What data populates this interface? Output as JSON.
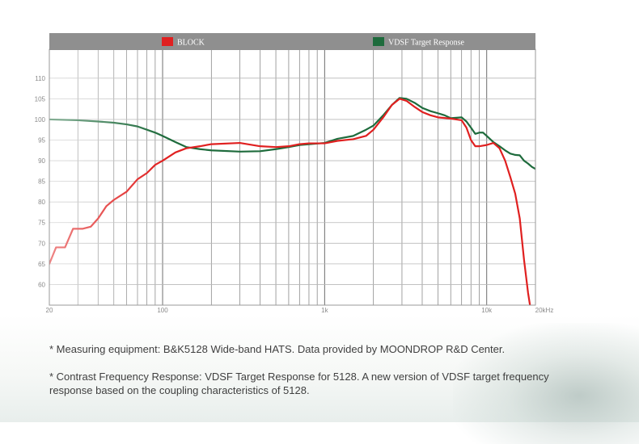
{
  "chart_data": {
    "type": "line",
    "x_scale": "log",
    "xlim": [
      20,
      20000
    ],
    "ylim": [
      55,
      117
    ],
    "y_ticks": [
      60,
      65,
      70,
      75,
      80,
      85,
      90,
      95,
      100,
      105,
      110
    ],
    "y_tick_labels": [
      "60",
      "65",
      "70",
      "75",
      "80",
      "85",
      "90",
      "95",
      "100",
      "105",
      "110"
    ],
    "x_ticks": [
      20,
      100,
      1000,
      10000,
      20000
    ],
    "x_tick_labels": [
      "20",
      "100",
      "1k",
      "10k",
      "20kHz"
    ],
    "grid": true,
    "legend_position": "top",
    "series": [
      {
        "name": "BLOCK",
        "color": "#e02020",
        "points": [
          [
            20,
            65
          ],
          [
            22,
            69
          ],
          [
            25,
            69
          ],
          [
            28,
            73.5
          ],
          [
            32,
            73.5
          ],
          [
            36,
            74
          ],
          [
            40,
            76
          ],
          [
            45,
            79
          ],
          [
            50,
            80.5
          ],
          [
            60,
            82.5
          ],
          [
            70,
            85.5
          ],
          [
            80,
            87
          ],
          [
            90,
            89
          ],
          [
            100,
            90
          ],
          [
            120,
            92
          ],
          [
            140,
            93
          ],
          [
            170,
            93.5
          ],
          [
            200,
            94
          ],
          [
            300,
            94.3
          ],
          [
            400,
            93.5
          ],
          [
            500,
            93.3
          ],
          [
            600,
            93.5
          ],
          [
            700,
            94
          ],
          [
            800,
            94.2
          ],
          [
            1000,
            94.2
          ],
          [
            1200,
            94.8
          ],
          [
            1500,
            95.2
          ],
          [
            1800,
            96
          ],
          [
            2000,
            97.5
          ],
          [
            2300,
            100.5
          ],
          [
            2600,
            103.5
          ],
          [
            2900,
            105
          ],
          [
            3200,
            104.5
          ],
          [
            3600,
            103
          ],
          [
            4000,
            101.8
          ],
          [
            4500,
            101
          ],
          [
            5000,
            100.5
          ],
          [
            6000,
            100.2
          ],
          [
            7000,
            99.8
          ],
          [
            7500,
            98
          ],
          [
            8000,
            95
          ],
          [
            8500,
            93.5
          ],
          [
            9000,
            93.5
          ],
          [
            10000,
            93.8
          ],
          [
            11000,
            94.3
          ],
          [
            12000,
            93
          ],
          [
            13000,
            90
          ],
          [
            14000,
            86
          ],
          [
            15000,
            82
          ],
          [
            16000,
            76
          ],
          [
            17000,
            66
          ],
          [
            18000,
            58
          ],
          [
            18500,
            55
          ]
        ]
      },
      {
        "name": "VDSF Target Response",
        "color": "#1e6b3c",
        "points": [
          [
            20,
            100
          ],
          [
            30,
            99.8
          ],
          [
            40,
            99.5
          ],
          [
            50,
            99.2
          ],
          [
            60,
            98.8
          ],
          [
            70,
            98.3
          ],
          [
            80,
            97.5
          ],
          [
            90,
            96.8
          ],
          [
            100,
            96
          ],
          [
            120,
            94.5
          ],
          [
            140,
            93.3
          ],
          [
            170,
            92.8
          ],
          [
            200,
            92.5
          ],
          [
            300,
            92.2
          ],
          [
            400,
            92.3
          ],
          [
            500,
            92.8
          ],
          [
            600,
            93.3
          ],
          [
            700,
            93.8
          ],
          [
            800,
            94
          ],
          [
            1000,
            94.3
          ],
          [
            1200,
            95.3
          ],
          [
            1500,
            96
          ],
          [
            1800,
            97.5
          ],
          [
            2000,
            98.5
          ],
          [
            2300,
            101
          ],
          [
            2600,
            103.5
          ],
          [
            2900,
            105.2
          ],
          [
            3200,
            105
          ],
          [
            3600,
            104
          ],
          [
            4000,
            102.8
          ],
          [
            4500,
            102
          ],
          [
            5000,
            101.5
          ],
          [
            5500,
            101
          ],
          [
            6000,
            100.3
          ],
          [
            6500,
            100.4
          ],
          [
            7000,
            100.5
          ],
          [
            7500,
            99.5
          ],
          [
            8000,
            98
          ],
          [
            8500,
            96.5
          ],
          [
            9000,
            96.8
          ],
          [
            9500,
            96.8
          ],
          [
            10000,
            96
          ],
          [
            11000,
            94.5
          ],
          [
            12000,
            93.5
          ],
          [
            13000,
            92.5
          ],
          [
            14000,
            91.7
          ],
          [
            15000,
            91.4
          ],
          [
            16000,
            91.3
          ],
          [
            17000,
            90
          ],
          [
            18000,
            89.3
          ],
          [
            19000,
            88.5
          ],
          [
            20000,
            88
          ]
        ]
      }
    ]
  },
  "notes": {
    "line1": "* Measuring equipment: B&K5128 Wide-band HATS. Data provided by MOONDROP R&D Center.",
    "line2": "* Contrast Frequency Response: VDSF Target Response for 5128.  A new version of VDSF target frequency response based on the coupling characteristics of 5128."
  }
}
